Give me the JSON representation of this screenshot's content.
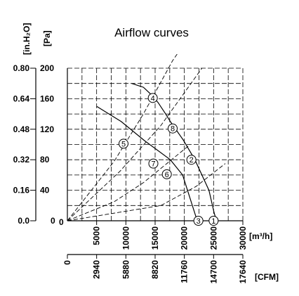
{
  "chart_data": {
    "type": "line",
    "title": "Airflow curves",
    "x_axes": [
      {
        "label": "[m³/h]",
        "ticks": [
          "5000",
          "10000",
          "15000",
          "20000",
          "25000",
          "30000"
        ],
        "range": [
          0,
          30000
        ]
      },
      {
        "label": "[CFM]",
        "ticks": [
          "0",
          "2940",
          "5880",
          "8820",
          "11760",
          "14700",
          "17640"
        ],
        "range": [
          0,
          17640
        ]
      }
    ],
    "y_axes": [
      {
        "label": "[Pa]",
        "ticks": [
          "0",
          "40",
          "80",
          "120",
          "160",
          "200"
        ],
        "range": [
          0,
          200
        ]
      },
      {
        "label": "[in.H₂O]",
        "ticks": [
          "0.0",
          "0.16",
          "0.32",
          "0.48",
          "0.64",
          "0.80"
        ],
        "range": [
          0,
          0.8
        ]
      }
    ],
    "origin_label": "0",
    "grid": true,
    "series": [
      {
        "x": [
          5000,
          9200,
          13200,
          17600,
          19700,
          22200
        ],
        "y": [
          150,
          130,
          105,
          80,
          60,
          0
        ]
      },
      {
        "x": [
          11000,
          13000,
          14400,
          15500,
          16800,
          17600,
          19800,
          21800,
          24200,
          25100,
          25500
        ],
        "y": [
          180,
          175,
          165,
          155,
          140,
          130,
          106,
          80,
          40,
          10,
          0
        ]
      },
      {
        "x": [
          0,
          8000,
          13000,
          17000,
          21000
        ],
        "y": [
          0,
          25,
          50,
          75,
          100
        ]
      },
      {
        "x": [
          0,
          9000,
          16000,
          23000
        ],
        "y": [
          0,
          65,
          125,
          200
        ]
      },
      {
        "x": [
          0,
          8000,
          13000,
          18000,
          22500
        ],
        "y": [
          0,
          78,
          140,
          210,
          260
        ]
      },
      {
        "x": [
          0,
          16000,
          22000,
          27000
        ],
        "y": [
          0,
          20,
          45,
          75
        ]
      }
    ],
    "markers": [
      {
        "label": "1",
        "x": 25000,
        "y": 0
      },
      {
        "label": "2",
        "x": 21200,
        "y": 80
      },
      {
        "label": "3",
        "x": 22400,
        "y": 0
      },
      {
        "label": "4",
        "x": 14600,
        "y": 161
      },
      {
        "label": "5",
        "x": 9600,
        "y": 101
      },
      {
        "label": "6",
        "x": 17000,
        "y": 61
      },
      {
        "label": "7",
        "x": 14700,
        "y": 75
      },
      {
        "label": "8",
        "x": 18000,
        "y": 121
      }
    ]
  }
}
